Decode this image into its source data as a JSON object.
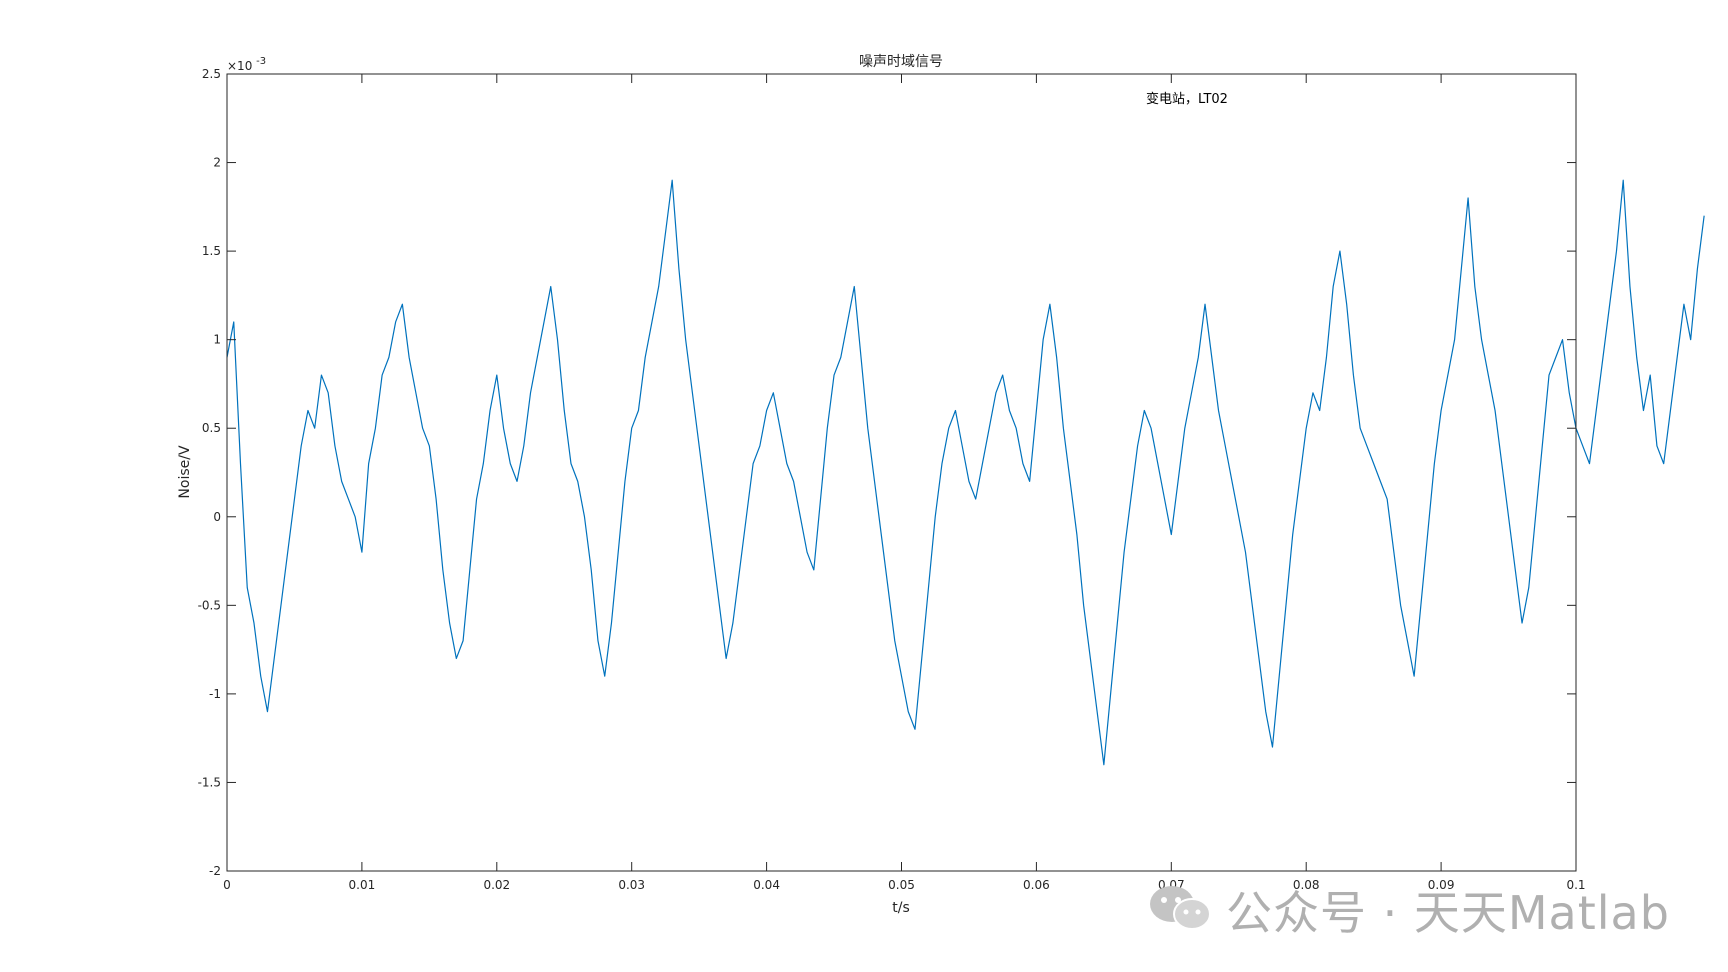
{
  "chart_data": {
    "type": "line",
    "title": "噪声时域信号",
    "xlabel": "t/s",
    "ylabel": "Noise/V",
    "y_exponent_label": "×10",
    "y_exponent_power": "-3",
    "annotation": "变电站，LT02",
    "xlim": [
      0,
      0.1
    ],
    "ylim": [
      -2,
      2.5
    ],
    "x_ticks": [
      0,
      0.01,
      0.02,
      0.03,
      0.04,
      0.05,
      0.06,
      0.07,
      0.08,
      0.09,
      0.1
    ],
    "x_tick_labels": [
      "0",
      "0.01",
      "0.02",
      "0.03",
      "0.04",
      "0.05",
      "0.06",
      "0.07",
      "0.08",
      "0.09",
      "0.1"
    ],
    "y_ticks": [
      -2,
      -1.5,
      -1,
      -0.5,
      0,
      0.5,
      1,
      1.5,
      2,
      2.5
    ],
    "y_tick_labels": [
      "-2",
      "-1.5",
      "-1",
      "-0.5",
      "0",
      "0.5",
      "1",
      "1.5",
      "2",
      "2.5"
    ],
    "grid": false,
    "series": [
      {
        "color": "#0072bd",
        "x_start": 0,
        "x_step": 0.0005,
        "y": [
          0.9,
          1.1,
          0.3,
          -0.4,
          -0.6,
          -0.9,
          -1.1,
          -0.8,
          -0.5,
          -0.2,
          0.1,
          0.4,
          0.6,
          0.5,
          0.8,
          0.7,
          0.4,
          0.2,
          0.1,
          0.0,
          -0.2,
          0.3,
          0.5,
          0.8,
          0.9,
          1.1,
          1.2,
          0.9,
          0.7,
          0.5,
          0.4,
          0.1,
          -0.3,
          -0.6,
          -0.8,
          -0.7,
          -0.3,
          0.1,
          0.3,
          0.6,
          0.8,
          0.5,
          0.3,
          0.2,
          0.4,
          0.7,
          0.9,
          1.1,
          1.3,
          1.0,
          0.6,
          0.3,
          0.2,
          0.0,
          -0.3,
          -0.7,
          -0.9,
          -0.6,
          -0.2,
          0.2,
          0.5,
          0.6,
          0.9,
          1.1,
          1.3,
          1.6,
          1.9,
          1.4,
          1.0,
          0.7,
          0.4,
          0.1,
          -0.2,
          -0.5,
          -0.8,
          -0.6,
          -0.3,
          0.0,
          0.3,
          0.4,
          0.6,
          0.7,
          0.5,
          0.3,
          0.2,
          0.0,
          -0.2,
          -0.3,
          0.1,
          0.5,
          0.8,
          0.9,
          1.1,
          1.3,
          0.9,
          0.5,
          0.2,
          -0.1,
          -0.4,
          -0.7,
          -0.9,
          -1.1,
          -1.2,
          -0.8,
          -0.4,
          0.0,
          0.3,
          0.5,
          0.6,
          0.4,
          0.2,
          0.1,
          0.3,
          0.5,
          0.7,
          0.8,
          0.6,
          0.5,
          0.3,
          0.2,
          0.6,
          1.0,
          1.2,
          0.9,
          0.5,
          0.2,
          -0.1,
          -0.5,
          -0.8,
          -1.1,
          -1.4,
          -1.0,
          -0.6,
          -0.2,
          0.1,
          0.4,
          0.6,
          0.5,
          0.3,
          0.1,
          -0.1,
          0.2,
          0.5,
          0.7,
          0.9,
          1.2,
          0.9,
          0.6,
          0.4,
          0.2,
          0.0,
          -0.2,
          -0.5,
          -0.8,
          -1.1,
          -1.3,
          -0.9,
          -0.5,
          -0.1,
          0.2,
          0.5,
          0.7,
          0.6,
          0.9,
          1.3,
          1.5,
          1.2,
          0.8,
          0.5,
          0.4,
          0.3,
          0.2,
          0.1,
          -0.2,
          -0.5,
          -0.7,
          -0.9,
          -0.5,
          -0.1,
          0.3,
          0.6,
          0.8,
          1.0,
          1.4,
          1.8,
          1.3,
          1.0,
          0.8,
          0.6,
          0.3,
          0.0,
          -0.3,
          -0.6,
          -0.4,
          0.0,
          0.4,
          0.8,
          0.9,
          1.0,
          0.7,
          0.5,
          0.4,
          0.3,
          0.6,
          0.9,
          1.2,
          1.5,
          1.9,
          1.3,
          0.9,
          0.6,
          0.8,
          0.4,
          0.3,
          0.6,
          0.9,
          1.2,
          1.0,
          1.4,
          1.7
        ]
      }
    ]
  },
  "watermark": {
    "icon": "wechat-icon",
    "text": "公众号 · 天天Matlab"
  }
}
